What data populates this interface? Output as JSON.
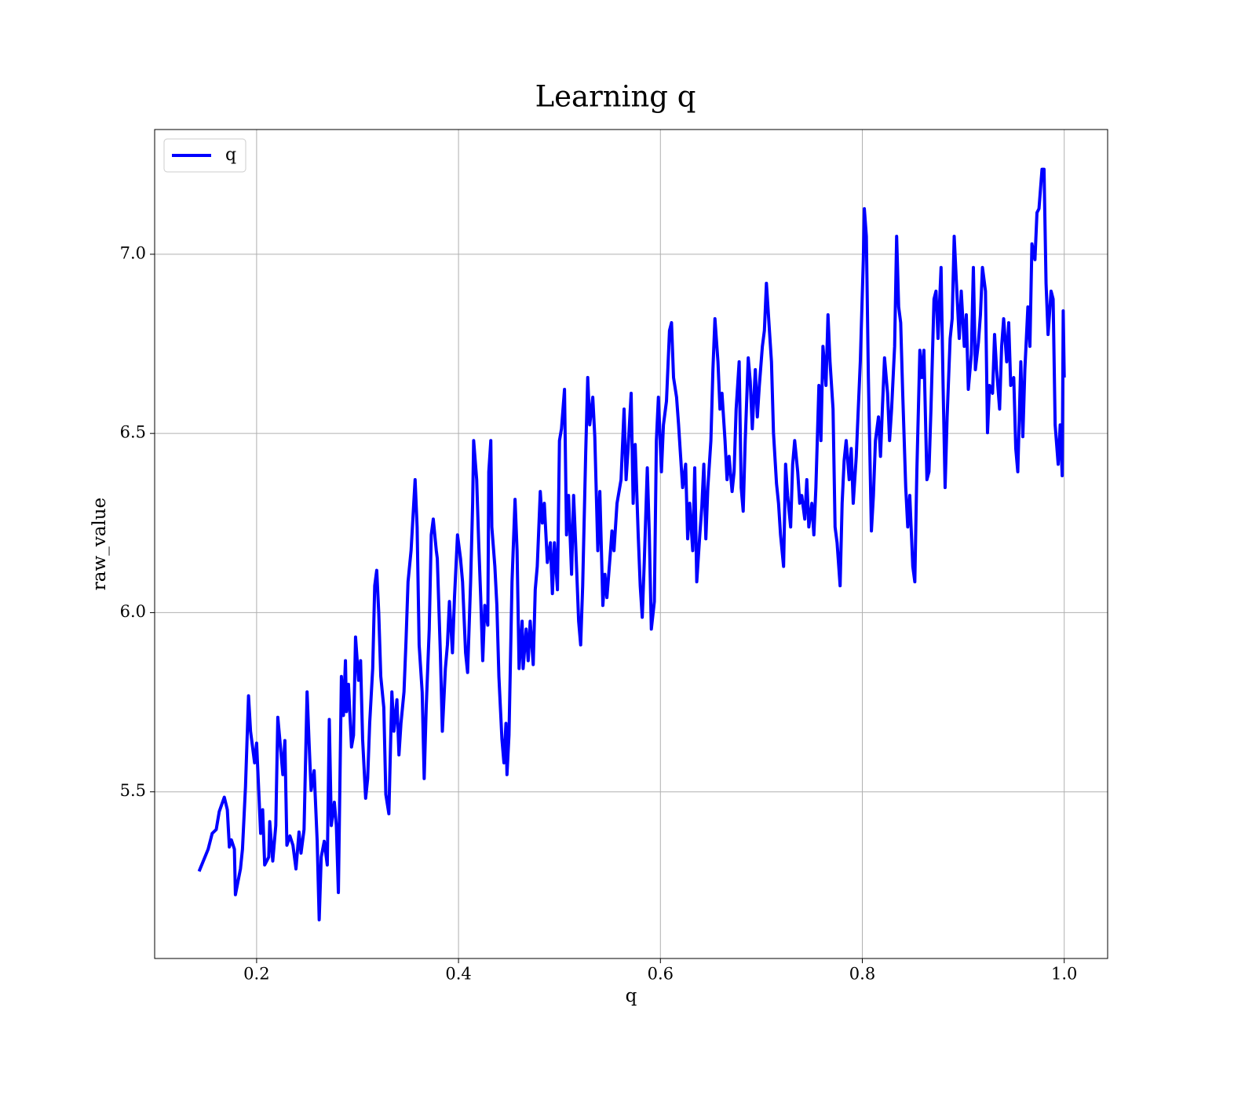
{
  "chart_data": {
    "type": "line",
    "title": "Learning q",
    "xlabel": "q",
    "ylabel": "raw_value",
    "x": [
      0.143,
      0.152,
      0.156,
      0.16,
      0.163,
      0.168,
      0.171,
      0.173,
      0.175,
      0.178,
      0.179,
      0.184,
      0.186,
      0.189,
      0.192,
      0.194,
      0.196,
      0.198,
      0.2,
      0.204,
      0.206,
      0.208,
      0.212,
      0.213,
      0.216,
      0.219,
      0.221,
      0.224,
      0.226,
      0.228,
      0.23,
      0.233,
      0.236,
      0.239,
      0.242,
      0.244,
      0.247,
      0.25,
      0.252,
      0.254,
      0.257,
      0.26,
      0.262,
      0.264,
      0.267,
      0.27,
      0.272,
      0.274,
      0.277,
      0.279,
      0.281,
      0.284,
      0.286,
      0.288,
      0.289,
      0.291,
      0.294,
      0.296,
      0.298,
      0.301,
      0.303,
      0.305,
      0.308,
      0.31,
      0.312,
      0.315,
      0.317,
      0.319,
      0.321,
      0.323,
      0.326,
      0.328,
      0.331,
      0.334,
      0.336,
      0.339,
      0.341,
      0.343,
      0.346,
      0.348,
      0.35,
      0.353,
      0.357,
      0.359,
      0.361,
      0.364,
      0.366,
      0.368,
      0.371,
      0.373,
      0.375,
      0.378,
      0.379,
      0.382,
      0.384,
      0.387,
      0.389,
      0.391,
      0.394,
      0.396,
      0.399,
      0.402,
      0.404,
      0.407,
      0.409,
      0.412,
      0.414,
      0.415,
      0.418,
      0.42,
      0.422,
      0.424,
      0.426,
      0.429,
      0.43,
      0.432,
      0.433,
      0.436,
      0.438,
      0.44,
      0.443,
      0.445,
      0.447,
      0.448,
      0.45,
      0.453,
      0.456,
      0.458,
      0.46,
      0.463,
      0.464,
      0.467,
      0.469,
      0.471,
      0.474,
      0.476,
      0.478,
      0.481,
      0.483,
      0.485,
      0.488,
      0.491,
      0.493,
      0.495,
      0.498,
      0.5,
      0.502,
      0.505,
      0.507,
      0.509,
      0.512,
      0.514,
      0.516,
      0.519,
      0.521,
      0.523,
      0.526,
      0.528,
      0.53,
      0.533,
      0.535,
      0.538,
      0.54,
      0.543,
      0.545,
      0.547,
      0.55,
      0.552,
      0.554,
      0.557,
      0.559,
      0.561,
      0.564,
      0.566,
      0.568,
      0.571,
      0.573,
      0.575,
      0.578,
      0.58,
      0.582,
      0.584,
      0.587,
      0.589,
      0.591,
      0.594,
      0.596,
      0.598,
      0.601,
      0.603,
      0.606,
      0.609,
      0.611,
      0.613,
      0.616,
      0.618,
      0.62,
      0.622,
      0.625,
      0.627,
      0.629,
      0.632,
      0.634,
      0.636,
      0.639,
      0.641,
      0.643,
      0.645,
      0.647,
      0.65,
      0.652,
      0.654,
      0.657,
      0.659,
      0.661,
      0.664,
      0.666,
      0.668,
      0.671,
      0.673,
      0.675,
      0.678,
      0.68,
      0.682,
      0.684,
      0.687,
      0.689,
      0.691,
      0.694,
      0.696,
      0.698,
      0.701,
      0.703,
      0.705,
      0.708,
      0.71,
      0.712,
      0.715,
      0.717,
      0.719,
      0.722,
      0.724,
      0.726,
      0.729,
      0.731,
      0.733,
      0.736,
      0.738,
      0.74,
      0.743,
      0.745,
      0.747,
      0.75,
      0.752,
      0.754,
      0.757,
      0.759,
      0.761,
      0.764,
      0.766,
      0.768,
      0.771,
      0.773,
      0.775,
      0.778,
      0.78,
      0.782,
      0.784,
      0.787,
      0.789,
      0.791,
      0.794,
      0.796,
      0.798,
      0.801,
      0.802,
      0.804,
      0.806,
      0.809,
      0.811,
      0.813,
      0.816,
      0.818,
      0.82,
      0.822,
      0.825,
      0.827,
      0.829,
      0.832,
      0.834,
      0.836,
      0.838,
      0.84,
      0.843,
      0.845,
      0.847,
      0.85,
      0.852,
      0.854,
      0.857,
      0.859,
      0.861,
      0.864,
      0.866,
      0.868,
      0.871,
      0.873,
      0.875,
      0.878,
      0.88,
      0.882,
      0.884,
      0.887,
      0.889,
      0.891,
      0.894,
      0.896,
      0.898,
      0.901,
      0.903,
      0.905,
      0.908,
      0.91,
      0.912,
      0.915,
      0.917,
      0.919,
      0.922,
      0.924,
      0.926,
      0.929,
      0.931,
      0.933,
      0.936,
      0.938,
      0.94,
      0.943,
      0.945,
      0.947,
      0.95,
      0.952,
      0.954,
      0.957,
      0.959,
      0.961,
      0.964,
      0.966,
      0.968,
      0.971,
      0.973,
      0.975,
      0.978,
      0.98,
      0.982,
      0.984,
      0.987,
      0.989,
      0.991,
      0.994,
      0.996,
      0.998,
      0.999,
      1.0
    ],
    "series": [
      {
        "name": "q",
        "color": "#0000ff",
        "values": [
          5.278,
          5.34,
          5.384,
          5.395,
          5.445,
          5.485,
          5.45,
          5.346,
          5.366,
          5.34,
          5.213,
          5.285,
          5.34,
          5.515,
          5.768,
          5.669,
          5.625,
          5.581,
          5.636,
          5.384,
          5.45,
          5.296,
          5.318,
          5.417,
          5.307,
          5.406,
          5.708,
          5.614,
          5.548,
          5.643,
          5.351,
          5.377,
          5.351,
          5.285,
          5.388,
          5.329,
          5.395,
          5.779,
          5.636,
          5.504,
          5.559,
          5.362,
          5.143,
          5.318,
          5.362,
          5.296,
          5.702,
          5.406,
          5.471,
          5.406,
          5.219,
          5.822,
          5.713,
          5.866,
          5.724,
          5.8,
          5.625,
          5.658,
          5.932,
          5.811,
          5.866,
          5.647,
          5.482,
          5.537,
          5.691,
          5.844,
          6.075,
          6.118,
          5.998,
          5.822,
          5.735,
          5.493,
          5.439,
          5.779,
          5.669,
          5.757,
          5.603,
          5.691,
          5.779,
          5.921,
          6.086,
          6.173,
          6.371,
          6.239,
          5.91,
          5.779,
          5.537,
          5.735,
          5.954,
          6.217,
          6.261,
          6.173,
          6.151,
          5.888,
          5.669,
          5.844,
          5.91,
          6.031,
          5.888,
          6.042,
          6.217,
          6.151,
          6.086,
          5.888,
          5.833,
          6.086,
          6.305,
          6.48,
          6.371,
          6.195,
          6.042,
          5.866,
          6.02,
          5.965,
          6.393,
          6.48,
          6.239,
          6.129,
          6.02,
          5.822,
          5.647,
          5.581,
          5.691,
          5.548,
          5.658,
          6.086,
          6.316,
          6.173,
          5.844,
          5.976,
          5.844,
          5.954,
          5.866,
          5.976,
          5.855,
          6.064,
          6.129,
          6.338,
          6.25,
          6.305,
          6.14,
          6.195,
          6.053,
          6.195,
          6.064,
          6.48,
          6.513,
          6.623,
          6.217,
          6.327,
          6.107,
          6.327,
          6.195,
          5.976,
          5.91,
          6.075,
          6.447,
          6.656,
          6.524,
          6.601,
          6.491,
          6.173,
          6.338,
          6.02,
          6.107,
          6.042,
          6.151,
          6.228,
          6.173,
          6.305,
          6.338,
          6.371,
          6.568,
          6.371,
          6.458,
          6.612,
          6.305,
          6.469,
          6.217,
          6.075,
          5.987,
          6.14,
          6.404,
          6.217,
          5.954,
          6.031,
          6.48,
          6.601,
          6.393,
          6.524,
          6.59,
          6.787,
          6.809,
          6.656,
          6.601,
          6.524,
          6.436,
          6.349,
          6.414,
          6.206,
          6.305,
          6.173,
          6.404,
          6.086,
          6.217,
          6.294,
          6.414,
          6.206,
          6.349,
          6.48,
          6.678,
          6.82,
          6.7,
          6.568,
          6.612,
          6.48,
          6.371,
          6.436,
          6.338,
          6.393,
          6.568,
          6.7,
          6.349,
          6.283,
          6.48,
          6.711,
          6.645,
          6.513,
          6.678,
          6.546,
          6.634,
          6.743,
          6.787,
          6.919,
          6.787,
          6.7,
          6.502,
          6.36,
          6.305,
          6.217,
          6.129,
          6.414,
          6.327,
          6.239,
          6.414,
          6.48,
          6.393,
          6.305,
          6.327,
          6.261,
          6.371,
          6.239,
          6.305,
          6.217,
          6.349,
          6.634,
          6.48,
          6.743,
          6.634,
          6.831,
          6.7,
          6.568,
          6.239,
          6.195,
          6.075,
          6.305,
          6.425,
          6.48,
          6.371,
          6.458,
          6.305,
          6.436,
          6.568,
          6.7,
          6.985,
          7.127,
          7.05,
          6.656,
          6.228,
          6.327,
          6.48,
          6.546,
          6.436,
          6.579,
          6.711,
          6.612,
          6.48,
          6.568,
          6.743,
          7.05,
          6.853,
          6.809,
          6.612,
          6.349,
          6.239,
          6.327,
          6.129,
          6.086,
          6.393,
          6.732,
          6.656,
          6.732,
          6.371,
          6.393,
          6.568,
          6.875,
          6.897,
          6.765,
          6.963,
          6.634,
          6.349,
          6.546,
          6.765,
          6.82,
          7.05,
          6.875,
          6.765,
          6.897,
          6.743,
          6.831,
          6.623,
          6.721,
          6.963,
          6.678,
          6.754,
          6.831,
          6.963,
          6.897,
          6.502,
          6.634,
          6.612,
          6.776,
          6.678,
          6.568,
          6.743,
          6.82,
          6.7,
          6.809,
          6.634,
          6.656,
          6.458,
          6.393,
          6.7,
          6.491,
          6.678,
          6.853,
          6.743,
          7.029,
          6.985,
          7.116,
          7.127,
          7.237,
          7.237,
          6.919,
          6.776,
          6.897,
          6.875,
          6.524,
          6.414,
          6.524,
          6.382,
          6.842,
          6.656
        ]
      }
    ],
    "xlim": [
      0.099,
      1.043
    ],
    "ylim": [
      5.035,
      7.348
    ],
    "xticks": [
      0.2,
      0.4,
      0.6,
      0.8,
      {
        "value": 1.0,
        "label": "1.0"
      }
    ],
    "yticks": [
      5.5,
      {
        "value": 6.0,
        "label": "6.0"
      },
      6.5,
      {
        "value": 7.0,
        "label": "7.0"
      }
    ],
    "grid": true,
    "legend": "upper left"
  }
}
